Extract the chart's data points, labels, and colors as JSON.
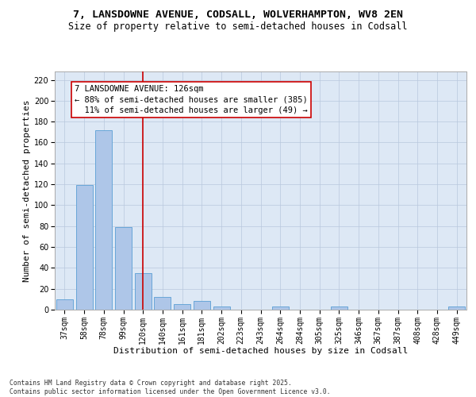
{
  "title1": "7, LANSDOWNE AVENUE, CODSALL, WOLVERHAMPTON, WV8 2EN",
  "title2": "Size of property relative to semi-detached houses in Codsall",
  "xlabel": "Distribution of semi-detached houses by size in Codsall",
  "ylabel": "Number of semi-detached properties",
  "categories": [
    "37sqm",
    "58sqm",
    "78sqm",
    "99sqm",
    "120sqm",
    "140sqm",
    "161sqm",
    "181sqm",
    "202sqm",
    "223sqm",
    "243sqm",
    "264sqm",
    "284sqm",
    "305sqm",
    "325sqm",
    "346sqm",
    "367sqm",
    "387sqm",
    "408sqm",
    "428sqm",
    "449sqm"
  ],
  "values": [
    10,
    119,
    172,
    79,
    35,
    12,
    5,
    8,
    3,
    0,
    0,
    3,
    0,
    0,
    3,
    0,
    0,
    0,
    0,
    0,
    3
  ],
  "bar_color": "#aec6e8",
  "bar_edge_color": "#5a9fd4",
  "vline_color": "#cc0000",
  "vline_x_index": 4.0,
  "annotation_text": "7 LANSDOWNE AVENUE: 126sqm\n← 88% of semi-detached houses are smaller (385)\n  11% of semi-detached houses are larger (49) →",
  "annotation_box_color": "#ffffff",
  "annotation_box_edge": "#cc0000",
  "ylim": [
    0,
    228
  ],
  "yticks": [
    0,
    20,
    40,
    60,
    80,
    100,
    120,
    140,
    160,
    180,
    200,
    220
  ],
  "bg_color": "#dde8f5",
  "grid_color": "#b8c8de",
  "footer": "Contains HM Land Registry data © Crown copyright and database right 2025.\nContains public sector information licensed under the Open Government Licence v3.0.",
  "title1_fontsize": 9.5,
  "title2_fontsize": 8.5,
  "xlabel_fontsize": 8,
  "ylabel_fontsize": 8,
  "tick_fontsize": 7,
  "annotation_fontsize": 7.5,
  "footer_fontsize": 5.8
}
